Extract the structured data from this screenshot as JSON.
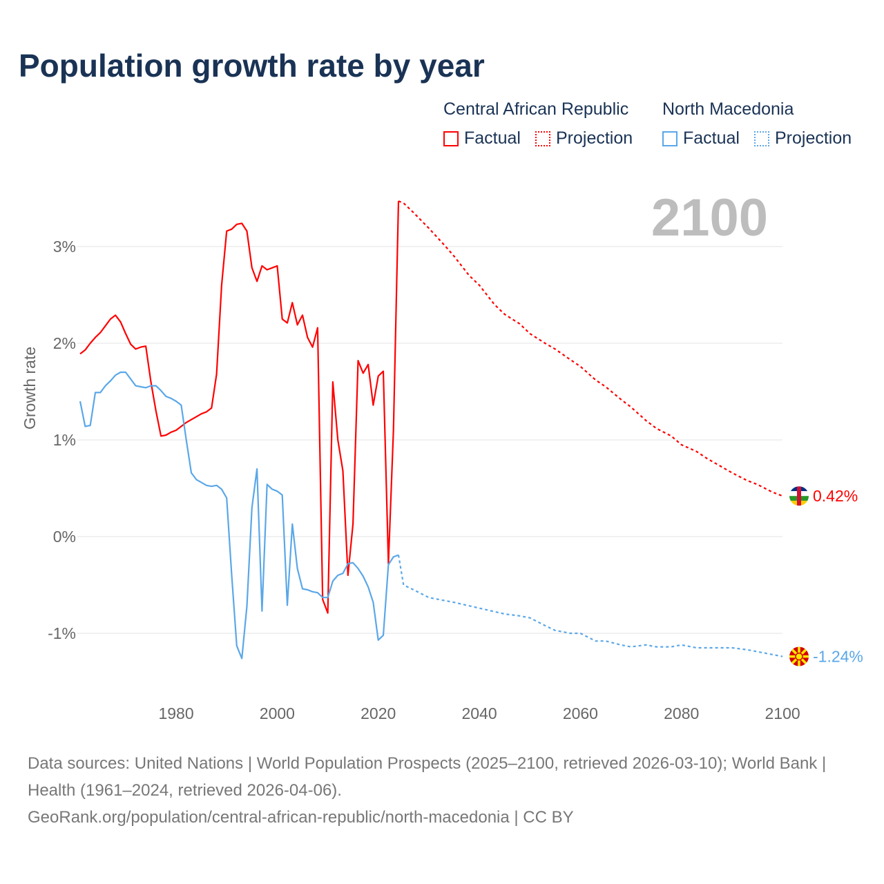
{
  "title": "Population growth rate by year",
  "legend": {
    "groups": [
      {
        "name": "Central African Republic",
        "factual_label": "Factual",
        "projection_label": "Projection",
        "color": "#ff0000"
      },
      {
        "name": "North Macedonia",
        "factual_label": "Factual",
        "projection_label": "Projection",
        "color": "#5aa7e8"
      }
    ]
  },
  "current_year_label": "2100",
  "footer": {
    "sources": "Data sources: United Nations | World Population Prospects (2025–2100, retrieved 2026-03-10); World Bank | Health (1961–2024, retrieved 2026-04-06).",
    "link": "GeoRank.org/population/central-african-republic/north-macedonia | CC BY"
  },
  "chart_data": {
    "type": "line",
    "title": "Population growth rate by year",
    "xlabel": "",
    "ylabel": "Growth rate",
    "xlim": [
      1960,
      2100
    ],
    "ylim": [
      -1.5,
      3.6
    ],
    "x_ticks": [
      1980,
      2000,
      2020,
      2040,
      2060,
      2080,
      2100
    ],
    "x_tick_labels": [
      "1980",
      "2000",
      "2020",
      "2040",
      "2060",
      "2080",
      "2100"
    ],
    "y_ticks": [
      3,
      2,
      1,
      0,
      -1
    ],
    "y_tick_labels": [
      "3%",
      "2%",
      "1%",
      "0%",
      "-1%"
    ],
    "grid": true,
    "series": [
      {
        "name": "Central African Republic",
        "color": "#ff0000",
        "end_label": "0.42%",
        "factual": {
          "x_start": 1961,
          "values": [
            1.89,
            1.93,
            2.0,
            2.06,
            2.11,
            2.18,
            2.25,
            2.29,
            2.22,
            2.1,
            1.99,
            1.94,
            1.96,
            1.97,
            1.6,
            1.3,
            1.04,
            1.05,
            1.08,
            1.1,
            1.14,
            1.18,
            1.21,
            1.24,
            1.27,
            1.29,
            1.33,
            1.68,
            2.6,
            3.16,
            3.18,
            3.23,
            3.24,
            3.16,
            2.78,
            2.64,
            2.8,
            2.76,
            2.78,
            2.8,
            2.25,
            2.21,
            2.42,
            2.19,
            2.29,
            2.06,
            1.96,
            2.16,
            -0.65,
            -0.79,
            1.6,
            1.0,
            0.68,
            -0.4,
            0.13,
            1.82,
            1.69,
            1.78,
            1.36,
            1.66,
            1.71,
            -0.28,
            1.1,
            3.47
          ]
        },
        "projection": {
          "x": [
            2024,
            2025,
            2027,
            2030,
            2033,
            2035,
            2038,
            2040,
            2043,
            2045,
            2048,
            2050,
            2053,
            2055,
            2058,
            2060,
            2063,
            2065,
            2068,
            2070,
            2073,
            2075,
            2078,
            2080,
            2083,
            2085,
            2088,
            2090,
            2093,
            2095,
            2098,
            2100
          ],
          "values": [
            3.47,
            3.45,
            3.35,
            3.19,
            3.02,
            2.9,
            2.7,
            2.6,
            2.4,
            2.3,
            2.2,
            2.1,
            2.0,
            1.94,
            1.83,
            1.76,
            1.62,
            1.55,
            1.42,
            1.34,
            1.2,
            1.12,
            1.04,
            0.95,
            0.88,
            0.81,
            0.72,
            0.66,
            0.58,
            0.54,
            0.46,
            0.42
          ]
        }
      },
      {
        "name": "North Macedonia",
        "color": "#5aa7e8",
        "end_label": "-1.24%",
        "factual": {
          "x_start": 1961,
          "values": [
            1.4,
            1.14,
            1.15,
            1.49,
            1.49,
            1.56,
            1.61,
            1.67,
            1.7,
            1.7,
            1.63,
            1.56,
            1.55,
            1.54,
            1.56,
            1.56,
            1.51,
            1.45,
            1.43,
            1.4,
            1.36,
            1.0,
            0.66,
            0.59,
            0.56,
            0.53,
            0.52,
            0.53,
            0.49,
            0.4,
            -0.4,
            -1.13,
            -1.26,
            -0.72,
            0.3,
            0.7,
            -0.77,
            0.54,
            0.49,
            0.47,
            0.43,
            -0.71,
            0.13,
            -0.33,
            -0.54,
            -0.55,
            -0.57,
            -0.58,
            -0.63,
            -0.63,
            -0.46,
            -0.4,
            -0.38,
            -0.28,
            -0.27,
            -0.33,
            -0.41,
            -0.52,
            -0.68,
            -1.07,
            -1.02,
            -0.29,
            -0.21,
            -0.19
          ]
        },
        "projection": {
          "x": [
            2024,
            2025,
            2027,
            2030,
            2035,
            2040,
            2045,
            2048,
            2050,
            2053,
            2055,
            2058,
            2060,
            2063,
            2065,
            2068,
            2070,
            2073,
            2075,
            2078,
            2080,
            2083,
            2085,
            2088,
            2090,
            2093,
            2095,
            2098,
            2100
          ],
          "values": [
            -0.19,
            -0.5,
            -0.55,
            -0.63,
            -0.68,
            -0.74,
            -0.8,
            -0.82,
            -0.84,
            -0.92,
            -0.97,
            -1.0,
            -1.0,
            -1.08,
            -1.08,
            -1.12,
            -1.14,
            -1.12,
            -1.14,
            -1.14,
            -1.12,
            -1.15,
            -1.15,
            -1.15,
            -1.15,
            -1.17,
            -1.19,
            -1.22,
            -1.24
          ]
        }
      }
    ]
  }
}
